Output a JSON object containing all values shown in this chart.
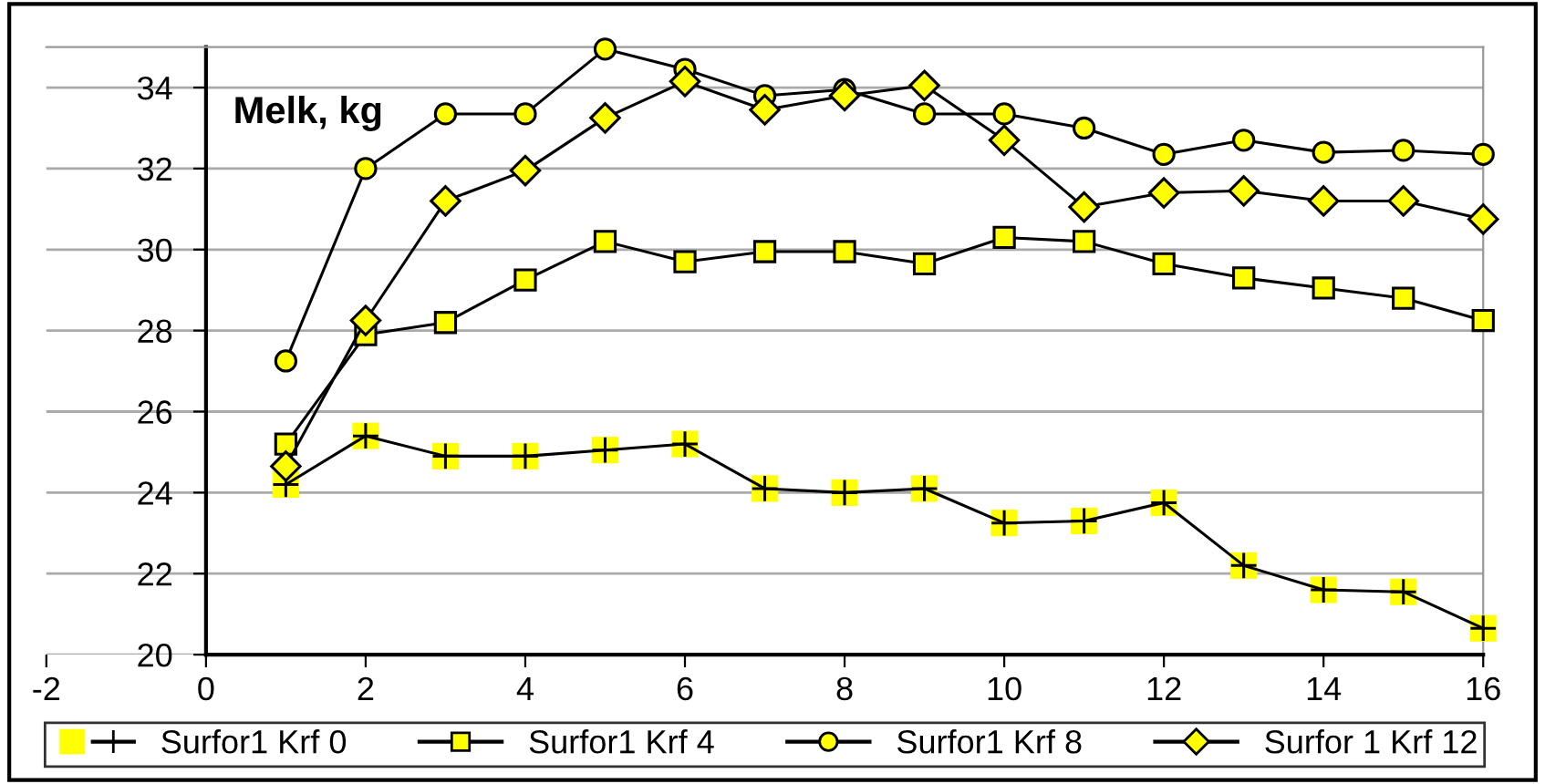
{
  "chart_data": {
    "type": "line",
    "annotations": [
      "Melk, kg"
    ],
    "x": [
      1,
      2,
      3,
      4,
      5,
      6,
      7,
      8,
      9,
      10,
      11,
      12,
      13,
      14,
      15,
      16
    ],
    "series": [
      {
        "name": "Surfor1 Krf 0",
        "color": "#000000",
        "marker": "cross",
        "values": [
          24.2,
          25.4,
          24.9,
          24.9,
          25.05,
          25.2,
          24.1,
          24.0,
          24.1,
          23.25,
          23.3,
          23.75,
          22.2,
          21.6,
          21.55,
          20.65
        ]
      },
      {
        "name": "Surfor1 Krf 4",
        "color": "#ffff00",
        "marker": "square",
        "values": [
          25.2,
          27.9,
          28.2,
          29.25,
          30.2,
          29.7,
          29.95,
          29.95,
          29.65,
          30.3,
          30.2,
          29.65,
          29.3,
          29.05,
          28.8,
          28.25
        ]
      },
      {
        "name": "Surfor1 Krf 8",
        "color": "#ffff00",
        "marker": "circle",
        "values": [
          27.25,
          32.0,
          33.35,
          33.35,
          34.95,
          34.45,
          33.8,
          33.95,
          33.35,
          33.35,
          33.0,
          32.35,
          32.7,
          32.4,
          32.45,
          32.35
        ]
      },
      {
        "name": "Surfor 1 Krf 12",
        "color": "#ffff00",
        "marker": "diamond",
        "values": [
          24.65,
          28.25,
          31.2,
          31.95,
          33.25,
          34.15,
          33.45,
          33.8,
          34.05,
          32.7,
          31.05,
          31.4,
          31.45,
          31.2,
          31.2,
          30.75
        ]
      }
    ],
    "xlim": [
      -2,
      16
    ],
    "xticks": [
      -2,
      0,
      2,
      4,
      6,
      8,
      10,
      12,
      14,
      16
    ],
    "ylim": [
      20,
      35
    ],
    "yticks": [
      20,
      22,
      24,
      26,
      28,
      30,
      32,
      34
    ],
    "grid": "y",
    "legend": "bottom",
    "line_style": "solid"
  }
}
